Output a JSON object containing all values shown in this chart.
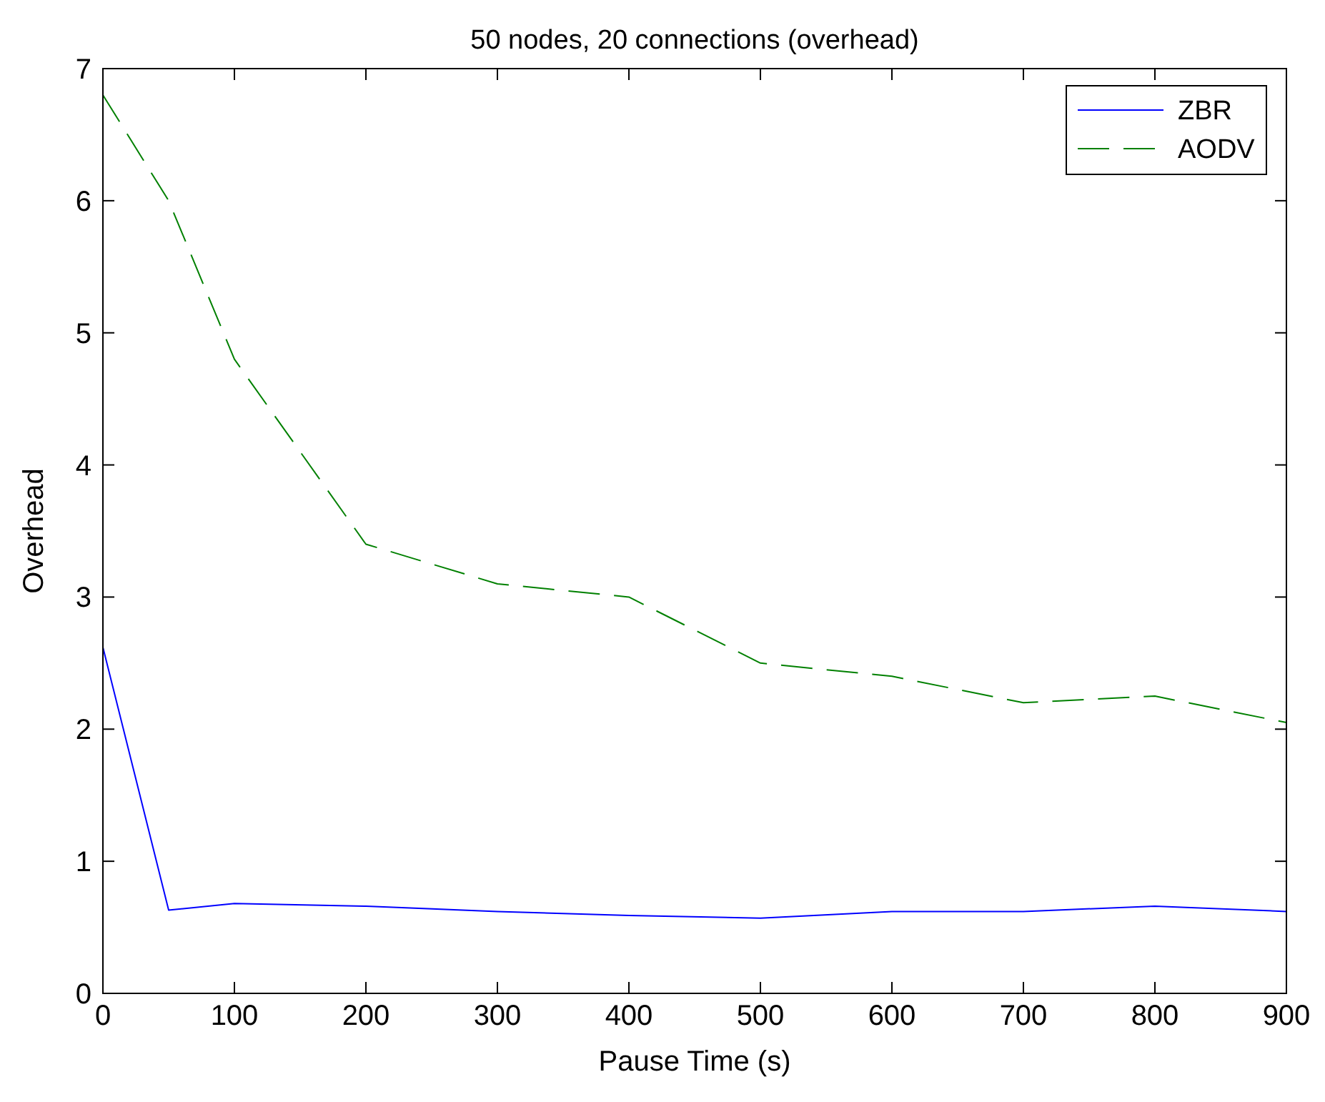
{
  "chart_data": {
    "type": "line",
    "title": "50 nodes, 20 connections (overhead)",
    "xlabel": "Pause Time (s)",
    "ylabel": "Overhead",
    "x": [
      0,
      50,
      100,
      200,
      300,
      400,
      500,
      600,
      700,
      800,
      900
    ],
    "series": [
      {
        "name": "ZBR",
        "color": "#0000ff",
        "line_style": "solid",
        "values": [
          2.62,
          0.63,
          0.68,
          0.66,
          0.62,
          0.59,
          0.57,
          0.62,
          0.62,
          0.66,
          0.62
        ]
      },
      {
        "name": "AODV",
        "color": "#008000",
        "line_style": "dashed",
        "values": [
          6.8,
          6.0,
          4.8,
          3.4,
          3.1,
          3.0,
          2.5,
          2.4,
          2.2,
          2.25,
          2.05
        ]
      }
    ],
    "xlim": [
      0,
      900
    ],
    "ylim": [
      0,
      7
    ],
    "xticks": [
      0,
      100,
      200,
      300,
      400,
      500,
      600,
      700,
      800,
      900
    ],
    "yticks": [
      0,
      1,
      2,
      3,
      4,
      5,
      6,
      7
    ],
    "grid": false,
    "legend": "top right"
  }
}
